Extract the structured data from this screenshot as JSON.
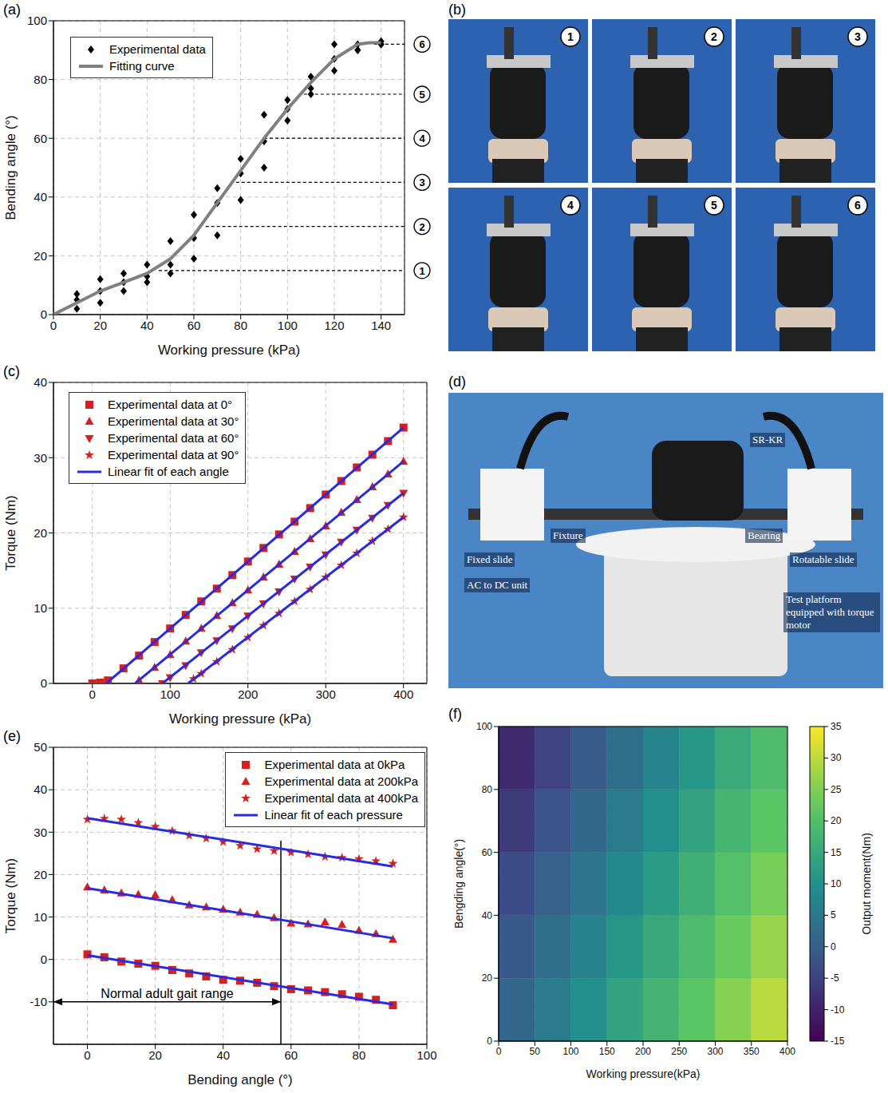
{
  "chart_data": [
    {
      "panel_label": "(a)",
      "type": "scatter",
      "xlabel": "Working pressure (kPa)",
      "ylabel": "Bending angle (°)",
      "xlim": [
        0,
        150
      ],
      "xticks": [
        0,
        20,
        40,
        60,
        80,
        100,
        120,
        140
      ],
      "ylim": [
        0,
        100
      ],
      "yticks": [
        0,
        20,
        40,
        60,
        80,
        100
      ],
      "grid": true,
      "legend": "upper left",
      "series": [
        {
          "name": "Experimental data",
          "type": "scatter",
          "marker": "diamond",
          "color": "#000000",
          "x": [
            10,
            10,
            10,
            20,
            20,
            20,
            30,
            30,
            30,
            40,
            40,
            40,
            50,
            50,
            50,
            60,
            60,
            60,
            70,
            70,
            70,
            80,
            80,
            80,
            90,
            90,
            90,
            100,
            100,
            100,
            110,
            110,
            110,
            120,
            120,
            120,
            130,
            130,
            130,
            140,
            140,
            140
          ],
          "values": [
            7,
            5,
            2,
            12,
            8,
            4,
            14,
            11,
            8,
            17,
            13,
            11,
            25,
            17,
            14,
            34,
            26,
            19,
            43,
            38,
            27,
            53,
            48,
            39,
            68,
            59,
            50,
            73,
            70,
            66,
            81,
            77,
            75,
            92,
            87,
            83,
            92,
            90,
            90,
            93,
            92,
            92
          ]
        },
        {
          "name": "Fitting curve",
          "type": "line",
          "color": "#808080",
          "x": [
            0,
            10,
            20,
            30,
            40,
            50,
            60,
            70,
            80,
            90,
            100,
            110,
            120,
            130,
            135,
            140
          ],
          "values": [
            0,
            4,
            8,
            11,
            14,
            19,
            27,
            38,
            49,
            60,
            70,
            79,
            87,
            92,
            92.5,
            92.5
          ]
        }
      ],
      "reference_lines": [
        {
          "label": "1",
          "y": 15,
          "x_from": 45
        },
        {
          "label": "2",
          "y": 30,
          "x_from": 65
        },
        {
          "label": "3",
          "y": 45,
          "x_from": 78
        },
        {
          "label": "4",
          "y": 60,
          "x_from": 90
        },
        {
          "label": "5",
          "y": 75,
          "x_from": 107
        },
        {
          "label": "6",
          "y": 92,
          "x_from": 137
        }
      ]
    },
    {
      "panel_label": "(c)",
      "type": "scatter",
      "xlabel": "Working pressure (kPa)",
      "ylabel": "Torque (Nm)",
      "xlim": [
        -50,
        430
      ],
      "xticks": [
        0,
        100,
        200,
        300,
        400
      ],
      "ylim": [
        0,
        40
      ],
      "yticks": [
        0,
        10,
        20,
        30,
        40
      ],
      "grid": true,
      "legend": "upper left",
      "series": [
        {
          "name": "Experimental data at 0°",
          "type": "scatter",
          "marker": "square",
          "color": "#d62020",
          "x": [
            0,
            10,
            20,
            40,
            60,
            80,
            100,
            120,
            140,
            160,
            180,
            200,
            220,
            240,
            260,
            280,
            300,
            320,
            340,
            360,
            380,
            400
          ],
          "values": [
            0,
            0.1,
            0.4,
            2.0,
            3.7,
            5.5,
            7.3,
            9.1,
            10.9,
            12.6,
            14.4,
            16.2,
            18.0,
            19.8,
            21.5,
            23.3,
            25.1,
            26.9,
            28.7,
            30.4,
            32.2,
            34.0
          ]
        },
        {
          "name": "Experimental data at 30°",
          "type": "scatter",
          "marker": "triangle",
          "color": "#d62020",
          "x": [
            60,
            80,
            100,
            120,
            140,
            160,
            180,
            200,
            220,
            240,
            260,
            280,
            300,
            320,
            340,
            360,
            380,
            400
          ],
          "values": [
            0.4,
            2.1,
            3.8,
            5.6,
            7.3,
            9.0,
            10.7,
            12.4,
            14.1,
            15.8,
            17.5,
            19.2,
            20.9,
            22.7,
            24.4,
            26.1,
            27.8,
            29.5
          ]
        },
        {
          "name": "Experimental data at 60°",
          "type": "scatter",
          "marker": "triangle-down",
          "color": "#d62020",
          "x": [
            90,
            100,
            120,
            140,
            160,
            180,
            200,
            220,
            240,
            260,
            280,
            300,
            320,
            340,
            360,
            380,
            400
          ],
          "values": [
            0,
            0.8,
            2.4,
            4.1,
            5.7,
            7.3,
            9.0,
            10.6,
            12.2,
            13.9,
            15.5,
            17.1,
            18.8,
            20.4,
            22.0,
            23.7,
            25.3
          ]
        },
        {
          "name": "Experimental data at 90°",
          "type": "scatter",
          "marker": "star",
          "color": "#d62020",
          "x": [
            130,
            140,
            160,
            180,
            200,
            220,
            240,
            260,
            280,
            300,
            320,
            340,
            360,
            380,
            400
          ],
          "values": [
            0.6,
            1.3,
            2.9,
            4.5,
            6.1,
            7.7,
            9.3,
            10.9,
            12.5,
            14.1,
            15.7,
            17.3,
            18.9,
            20.5,
            22.1
          ]
        },
        {
          "name": "Linear fit of each angle",
          "type": "line",
          "color": "#2a2adf",
          "segments": [
            {
              "x": [
                18,
                400
              ],
              "values": [
                0,
                34.0
              ]
            },
            {
              "x": [
                55,
                400
              ],
              "values": [
                0,
                29.5
              ]
            },
            {
              "x": [
                90,
                400
              ],
              "values": [
                0,
                25.3
              ]
            },
            {
              "x": [
                123,
                400
              ],
              "values": [
                0,
                22.1
              ]
            }
          ]
        }
      ]
    },
    {
      "panel_label": "(e)",
      "type": "scatter",
      "xlabel": "Bending angle (°)",
      "ylabel": "Torque (Nm)",
      "xlim": [
        -10,
        100
      ],
      "xticks": [
        0,
        20,
        40,
        60,
        80,
        100
      ],
      "ylim": [
        -20,
        50
      ],
      "yticks": [
        -10,
        0,
        10,
        20,
        30,
        40,
        50
      ],
      "grid": true,
      "legend": "upper right",
      "series": [
        {
          "name": "Experimental data at 0kPa",
          "type": "scatter",
          "marker": "square",
          "color": "#d62020",
          "x": [
            0,
            5,
            10,
            15,
            20,
            25,
            30,
            35,
            40,
            45,
            50,
            55,
            60,
            65,
            70,
            75,
            80,
            85,
            90
          ],
          "values": [
            1.2,
            0.5,
            -0.5,
            -1,
            -1.5,
            -2.5,
            -3.3,
            -4,
            -4.8,
            -5,
            -5.5,
            -6.3,
            -7,
            -7.3,
            -7.7,
            -8.2,
            -8.8,
            -9.5,
            -10.8
          ]
        },
        {
          "name": "Experimental data at 200kPa",
          "type": "scatter",
          "marker": "triangle",
          "color": "#d62020",
          "x": [
            0,
            5,
            10,
            15,
            20,
            25,
            30,
            35,
            40,
            45,
            50,
            55,
            60,
            65,
            70,
            75,
            80,
            85,
            90
          ],
          "values": [
            17,
            16.3,
            15.6,
            15.3,
            15.2,
            14,
            12.8,
            12.3,
            11.8,
            11.1,
            10.6,
            9.8,
            8.5,
            8.3,
            8.8,
            8.2,
            6.8,
            6,
            4.7
          ]
        },
        {
          "name": "Experimental data at 400kPa",
          "type": "scatter",
          "marker": "star",
          "color": "#d62020",
          "x": [
            0,
            5,
            10,
            15,
            20,
            25,
            30,
            35,
            40,
            45,
            50,
            55,
            60,
            65,
            70,
            75,
            80,
            85,
            90
          ],
          "values": [
            33,
            33.2,
            33,
            32.2,
            31.3,
            30.3,
            29.2,
            28.5,
            27.7,
            26.8,
            26,
            25.6,
            25.2,
            24.8,
            24.2,
            24,
            23.7,
            23.2,
            22.6
          ]
        },
        {
          "name": "Linear fit of each pressure",
          "type": "line",
          "color": "#2a2adf",
          "segments": [
            {
              "x": [
                0,
                90
              ],
              "values": [
                1.0,
                -10.6
              ]
            },
            {
              "x": [
                0,
                90
              ],
              "values": [
                16.8,
                5.0
              ]
            },
            {
              "x": [
                0,
                90
              ],
              "values": [
                33.3,
                21.9
              ]
            }
          ]
        }
      ],
      "gait_range": {
        "text": "Normal adult gait range",
        "x_from": -10,
        "x_to": 57,
        "y": -10,
        "line_top": 28
      }
    },
    {
      "panel_label": "(f)",
      "type": "heatmap",
      "xlabel": "Working pressure(kPa)",
      "ylabel": "Bengding angle(°)",
      "zlabel": "Output moment(Nm)",
      "xlim": [
        0,
        400
      ],
      "xticks": [
        0,
        50,
        100,
        150,
        200,
        250,
        300,
        350,
        400
      ],
      "ylim": [
        0,
        100
      ],
      "yticks": [
        0,
        20,
        40,
        60,
        80,
        100
      ],
      "zlim": [
        -15,
        35
      ],
      "zticks": [
        -15,
        -10,
        -5,
        0,
        5,
        10,
        15,
        20,
        25,
        30,
        35
      ],
      "x_edges": [
        0,
        50,
        100,
        150,
        200,
        250,
        300,
        350,
        400
      ],
      "y_edges": [
        0,
        20,
        40,
        60,
        80,
        100
      ],
      "values": [
        [
          1.7,
          5.7,
          9.7,
          13.7,
          17.7,
          21.7,
          25.7,
          29.7
        ],
        [
          -0.9,
          3.1,
          7.1,
          11.1,
          15.1,
          19.1,
          23.1,
          27.1
        ],
        [
          -3.5,
          0.5,
          4.5,
          8.5,
          12.5,
          16.5,
          20.5,
          24.5
        ],
        [
          -6.1,
          -2.1,
          1.9,
          5.9,
          9.9,
          13.9,
          17.9,
          21.9
        ],
        [
          -8.7,
          -4.7,
          -0.7,
          3.3,
          7.3,
          11.3,
          15.3,
          19.3
        ]
      ]
    }
  ],
  "photos": {
    "b": {
      "panel_label": "(b)",
      "photo_labels": [
        "1",
        "2",
        "3",
        "4",
        "5",
        "6"
      ]
    },
    "d": {
      "panel_label": "(d)",
      "labels": [
        "SR-KR",
        "Fixture",
        "Bearing",
        "Fixed slide",
        "Rotatable slide",
        "AC to DC unit",
        "Test platform equipped with torque motor"
      ]
    }
  }
}
